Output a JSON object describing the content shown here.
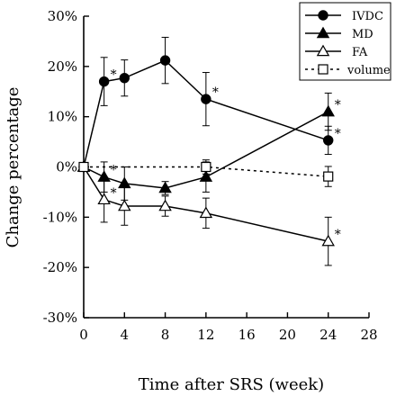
{
  "chart_data": {
    "type": "line",
    "xlabel": "Time after SRS (week)",
    "ylabel": "Change percentage",
    "xlim": [
      0,
      28
    ],
    "ylim": [
      -30,
      30
    ],
    "x_ticks": [
      0,
      4,
      8,
      12,
      16,
      20,
      24,
      28
    ],
    "y_ticks": [
      -30,
      -20,
      -10,
      0,
      10,
      20,
      30
    ],
    "x_tick_labels": [
      "0",
      "4",
      "8",
      "12",
      "16",
      "20",
      "24",
      "28"
    ],
    "y_tick_labels": [
      "-30%",
      "-20%",
      "-10%",
      "0%",
      "10%",
      "20%",
      "30%"
    ],
    "legend_position": "top-right",
    "grid": false,
    "series": [
      {
        "name": "IVDC",
        "marker": "filled-circle",
        "line": "solid",
        "x": [
          0,
          2,
          4,
          8,
          12,
          24
        ],
        "y": [
          0,
          17,
          17.7,
          21.2,
          13.5,
          5.3
        ],
        "err": [
          0,
          4.8,
          3.6,
          4.6,
          5.3,
          2.8
        ],
        "significant": [
          false,
          true,
          false,
          false,
          true,
          true
        ]
      },
      {
        "name": "MD",
        "marker": "filled-triangle",
        "line": "solid",
        "x": [
          0,
          2,
          4,
          8,
          12,
          24
        ],
        "y": [
          0,
          -2,
          -3.3,
          -4.2,
          -2,
          11
        ],
        "err": [
          0,
          3,
          3.3,
          1.3,
          3,
          3.7
        ],
        "significant": [
          false,
          true,
          false,
          false,
          false,
          true
        ]
      },
      {
        "name": "FA",
        "marker": "open-triangle",
        "line": "solid",
        "x": [
          0,
          2,
          4,
          8,
          12,
          24
        ],
        "y": [
          0,
          -6.5,
          -7.8,
          -7.8,
          -9.2,
          -14.8
        ],
        "err": [
          0,
          4.5,
          3.8,
          2,
          3,
          4.8
        ],
        "significant": [
          false,
          true,
          false,
          false,
          false,
          true
        ]
      },
      {
        "name": "volume",
        "marker": "open-square",
        "line": "dotted",
        "x": [
          0,
          12,
          24
        ],
        "y": [
          0,
          0,
          -1.9
        ],
        "err": [
          0,
          1.4,
          2
        ],
        "significant": [
          false,
          false,
          false
        ]
      }
    ],
    "significance_symbol": "*"
  }
}
